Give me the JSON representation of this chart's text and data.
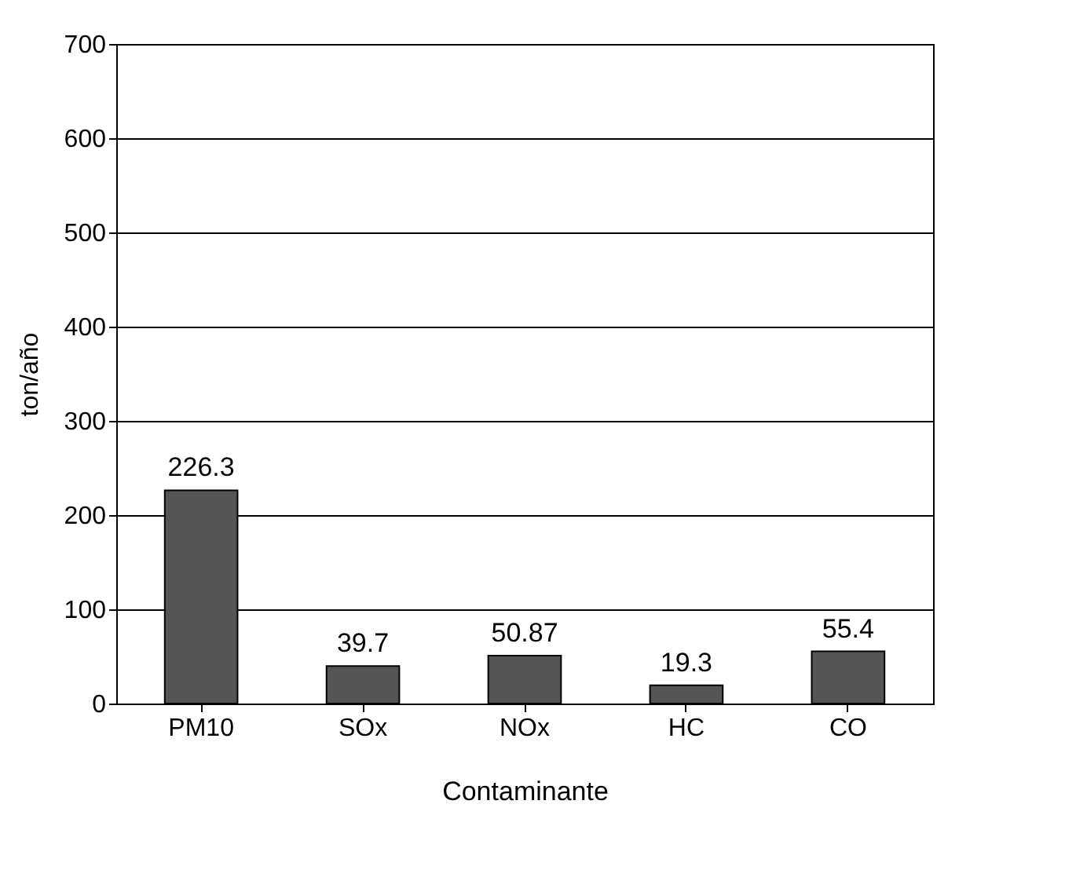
{
  "chart_data": {
    "type": "bar",
    "xlabel": "Contaminante",
    "ylabel": "ton/año",
    "categories": [
      "PM10",
      "SOx",
      "NOx",
      "HC",
      "CO"
    ],
    "values": [
      226.3,
      39.7,
      50.87,
      19.3,
      55.4
    ],
    "color": "#555555",
    "ylim": [
      0,
      700
    ],
    "yticks": [
      0,
      100,
      200,
      300,
      400,
      500,
      600,
      700
    ],
    "grid": "y",
    "data_labels": true
  }
}
